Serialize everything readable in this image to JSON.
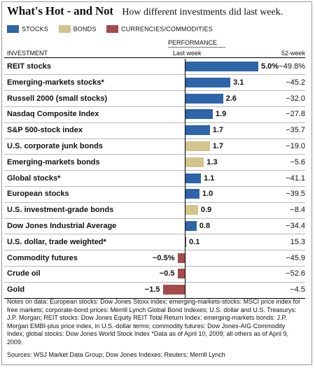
{
  "title": "What's Hot - and Not",
  "subtitle": "How different investments did last week.",
  "legend": [
    {
      "label": "STOCKS",
      "color": "#2e64a8"
    },
    {
      "label": "BONDS",
      "color": "#d3c38c"
    },
    {
      "label": "CURRENCIES/COMMODITIES",
      "color": "#a44a4a"
    }
  ],
  "headers": {
    "investment": "INVESTMENT",
    "performance": "PERFORMANCE",
    "last_week": "Last week",
    "fifty_two_week": "52-week"
  },
  "chart_data": {
    "type": "bar",
    "orientation": "horizontal",
    "categories": [
      "REIT stocks",
      "Emerging-markets stocks*",
      "Russell 2000 (small stocks)",
      "Nasdaq Composite Index",
      "S&P 500-stock index",
      "U.S. corporate junk bonds",
      "Emerging-markets bonds",
      "Global stocks*",
      "European stocks",
      "U.S. investment-grade bonds",
      "Dow Jones Industrial Average",
      "U.S. dollar, trade weighted*",
      "Commodity futures",
      "Crude oil",
      "Gold"
    ],
    "values": [
      5.0,
      3.1,
      2.6,
      1.9,
      1.7,
      1.7,
      1.3,
      1.1,
      1.0,
      0.9,
      0.8,
      0.1,
      -0.5,
      -0.5,
      -1.5
    ],
    "value_labels": [
      "5.0%",
      "3.1",
      "2.6",
      "1.9",
      "1.7",
      "1.7",
      "1.3",
      "1.1",
      "1.0",
      "0.9",
      "0.8",
      "0.1",
      "−0.5%",
      "−0.5",
      "−1.5"
    ],
    "groups": [
      "stocks",
      "stocks",
      "stocks",
      "stocks",
      "stocks",
      "bonds",
      "bonds",
      "stocks",
      "stocks",
      "bonds",
      "stocks",
      "currencies",
      "currencies",
      "currencies",
      "currencies"
    ],
    "fifty_two_week": [
      "−49.8%",
      "−45.2",
      "−32.0",
      "−27.8",
      "−35.7",
      "−19.0",
      "−5.6",
      "−41.1",
      "−39.5",
      "−8.4",
      "−34.4",
      "15.3",
      "−45.9",
      "−52.6",
      "−4.5"
    ],
    "group_colors": {
      "stocks": "#2e64a8",
      "bonds": "#d3c38c",
      "currencies": "#a44a4a"
    }
  },
  "notes": "Notes on data: European stocks: Dow Jones Stoxx index; emerging-markets-stocks: MSCI price index for free markets; corporate-bond prices: Merrill Lynch Global Bond Indexes; U.S. dollar and U.S. Treasurys: J.P. Morgan; REIT stocks: Dow Jones Equity REIT Total Return Index; emerging-markets bonds: J.P. Morgan EMBI-plus price index, in U.S.-dollar terms; commodity futures: Dow Jones-AIG Commodity Index; global stocks: Dow Jones World Stock Index  *Data as of April 10, 2009; all others as of April 9, 2009.",
  "sources": "Sources: WSJ Market Data Group; Dow Jones Indexes; Reuters; Merrill Lynch"
}
